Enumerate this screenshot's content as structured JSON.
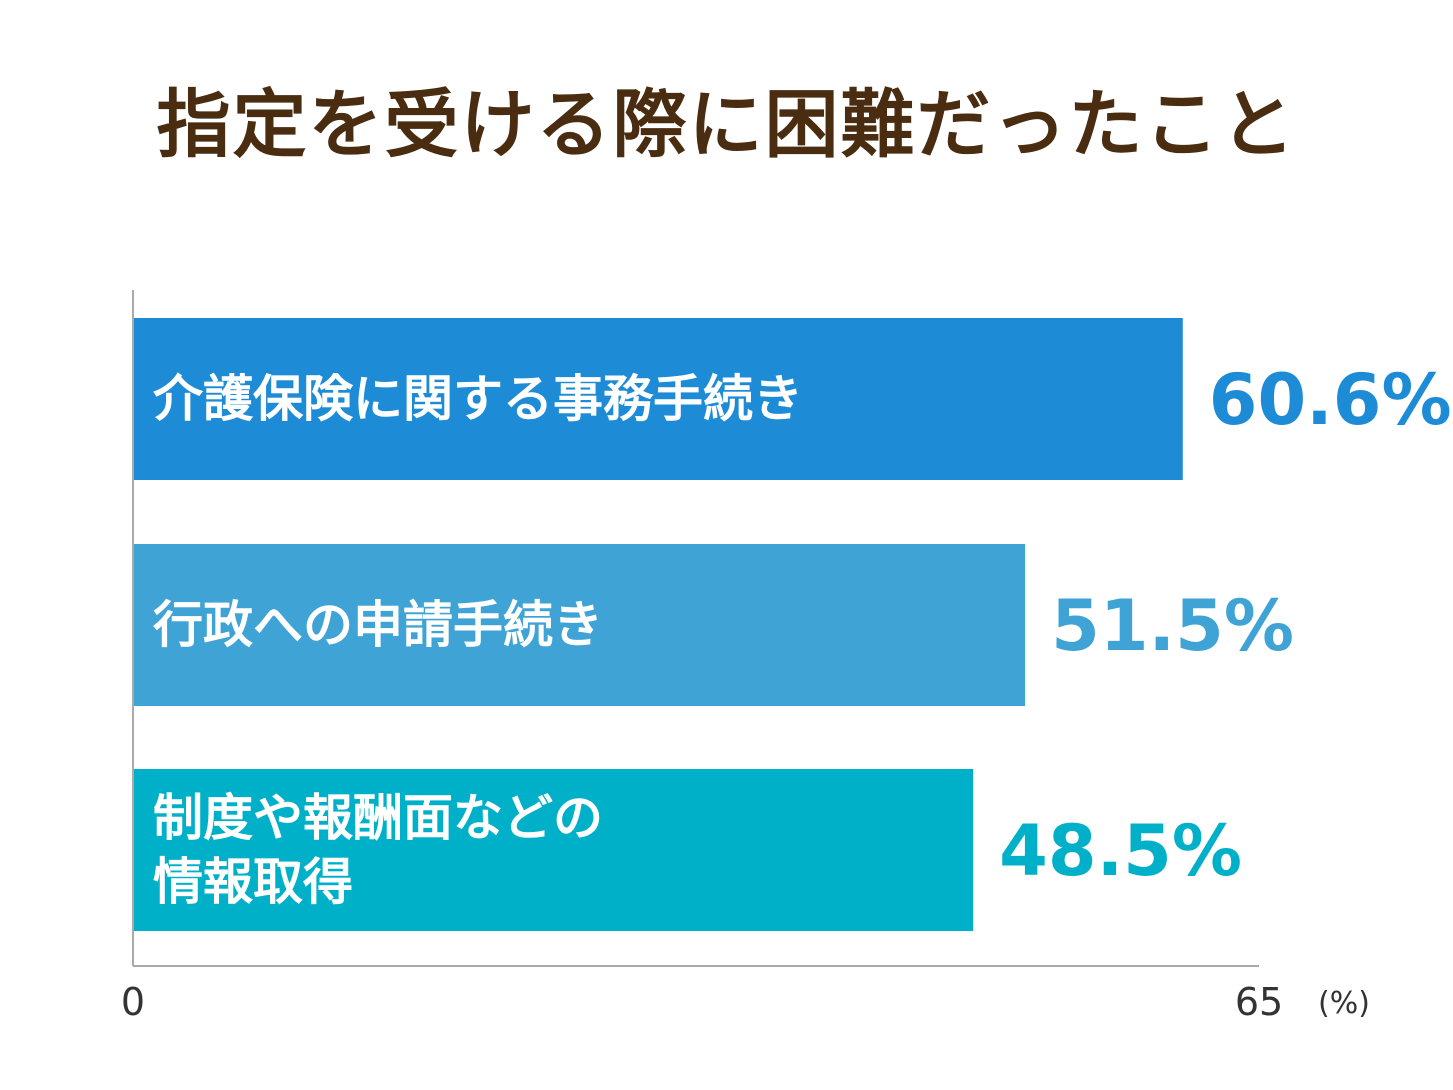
{
  "chart_data": {
    "type": "bar",
    "orientation": "horizontal",
    "title": "指定を受ける際に困難だったこと",
    "categories": [
      [
        "介護保険に関する事務手続き"
      ],
      [
        "行政への申請手続き"
      ],
      [
        "制度や報酬面などの",
        "情報取得"
      ]
    ],
    "values": [
      60.6,
      51.5,
      48.5
    ],
    "value_labels": [
      "60.6%",
      "51.5%",
      "48.5%"
    ],
    "colors": [
      "#1e8bd6",
      "#3fa3d6",
      "#00b0c8"
    ],
    "xlim": [
      0,
      65
    ],
    "x_ticks": [
      "0",
      "65"
    ],
    "unit": "(%)",
    "grid": false,
    "legend": "none"
  }
}
